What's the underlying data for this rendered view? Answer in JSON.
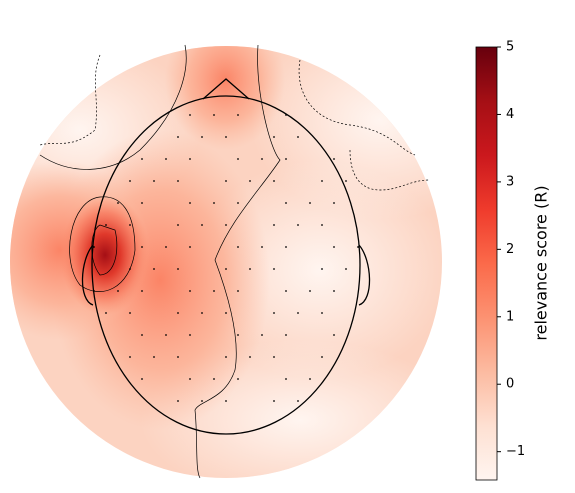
{
  "chart_data": {
    "type": "topomap",
    "colormap": "Reds",
    "colorbar": {
      "label": "relevance score (R)",
      "clim": [
        -1.42,
        5
      ],
      "ticks": [
        {
          "value": -1,
          "label": "−1"
        },
        0,
        1,
        2,
        3,
        4,
        5
      ]
    }
  }
}
